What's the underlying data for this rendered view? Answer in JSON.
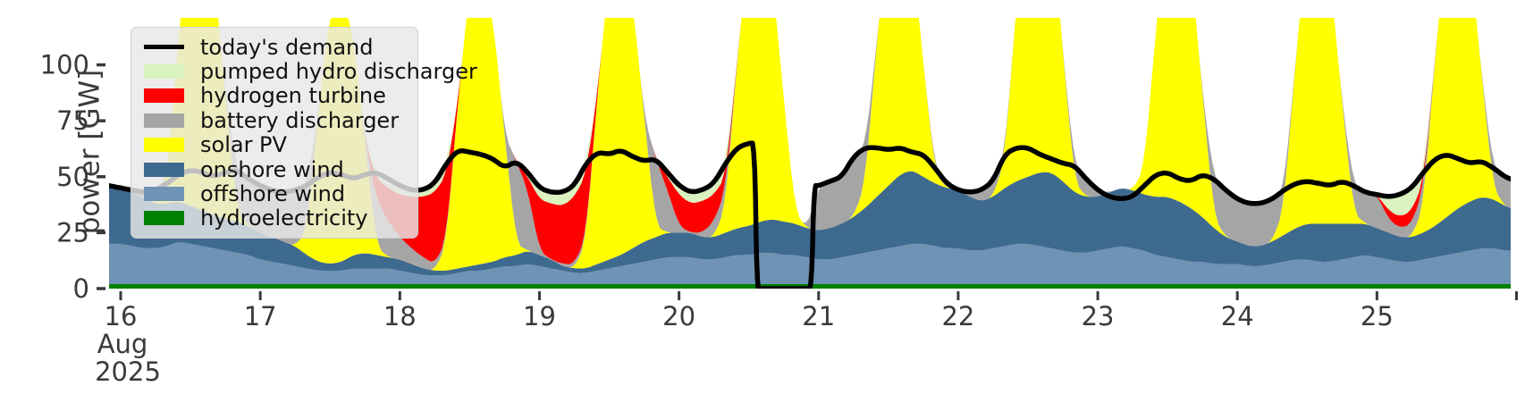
{
  "figure": {
    "ylabel": "power [GW]",
    "x_offset_label": {
      "line1": "Aug",
      "line2": "2025"
    },
    "text_color": "#3a3a3a",
    "background": "#ffffff"
  },
  "chart_data": {
    "type": "area",
    "title": "",
    "xlabel": "",
    "ylabel": "power [GW]",
    "x_unit": "hours since 2025-08-16 00:00",
    "xlim_hours": [
      -2,
      239
    ],
    "ylim": [
      0,
      121
    ],
    "grid": false,
    "x_ticks": {
      "hours": [
        0,
        24,
        48,
        72,
        96,
        120,
        144,
        168,
        192,
        216,
        240
      ],
      "labels": [
        "16",
        "17",
        "18",
        "19",
        "20",
        "21",
        "22",
        "23",
        "24",
        "25",
        ""
      ]
    },
    "y_ticks": {
      "values": [
        0,
        25,
        50,
        75,
        100
      ],
      "labels": [
        "0",
        "25",
        "50",
        "75",
        "100"
      ]
    },
    "legend": {
      "position": "upper left",
      "entries": [
        {
          "label": "today's demand",
          "color": "#000000",
          "swatch": "line"
        },
        {
          "label": "pumped hydro discharger",
          "color": "#d9f2c0",
          "swatch": "patch"
        },
        {
          "label": "hydrogen turbine",
          "color": "#ff0000",
          "swatch": "patch"
        },
        {
          "label": "battery discharger",
          "color": "#a5a5a5",
          "swatch": "patch"
        },
        {
          "label": "solar PV",
          "color": "#ffff00",
          "swatch": "patch"
        },
        {
          "label": "onshore wind",
          "color": "#3f6a8f",
          "swatch": "patch"
        },
        {
          "label": "offshore wind",
          "color": "#6e93b4",
          "swatch": "patch"
        },
        {
          "label": "hydroelectricity",
          "color": "#008000",
          "swatch": "patch"
        }
      ]
    },
    "stack_grid": {
      "pre_hour": -2,
      "day_start_hours": [
        0,
        24,
        48,
        72,
        96,
        120,
        144,
        168,
        192,
        216
      ],
      "hours_in_day": [
        0,
        2,
        4,
        6,
        8,
        10,
        12,
        14,
        16,
        18,
        20,
        22
      ],
      "post_hour": 239
    },
    "stack_series": [
      {
        "name": "hydroelectricity",
        "color": "#008000",
        "pre": 2,
        "post": 2,
        "constant": 2
      },
      {
        "name": "offshore wind",
        "color": "#6e93b4",
        "pre": 18,
        "post": 15,
        "days": [
          [
            18,
            17,
            16,
            16,
            17,
            19,
            18,
            17,
            16,
            15,
            14,
            13
          ],
          [
            11,
            10,
            9,
            8,
            7,
            6,
            6,
            6,
            7,
            7,
            7,
            7
          ],
          [
            6,
            5,
            4,
            4,
            4,
            5,
            6,
            6,
            7,
            8,
            8,
            9
          ],
          [
            8,
            7,
            6,
            5,
            5,
            6,
            7,
            8,
            9,
            10,
            11,
            12
          ],
          [
            12,
            12,
            11,
            11,
            12,
            13,
            13,
            14,
            14,
            13,
            13,
            12
          ],
          [
            11,
            11,
            12,
            13,
            14,
            15,
            16,
            17,
            18,
            18,
            17,
            16
          ],
          [
            16,
            15,
            15,
            16,
            17,
            18,
            18,
            17,
            16,
            15,
            14,
            14
          ],
          [
            15,
            16,
            17,
            16,
            15,
            13,
            12,
            11,
            10,
            10,
            9,
            9
          ],
          [
            9,
            8,
            8,
            9,
            10,
            11,
            11,
            10,
            10,
            11,
            12,
            13
          ],
          [
            12,
            11,
            10,
            10,
            11,
            12,
            13,
            14,
            15,
            16,
            16,
            15
          ]
        ]
      },
      {
        "name": "onshore wind",
        "color": "#3f6a8f",
        "pre": 25,
        "post": 19,
        "days": [
          [
            25,
            24,
            22,
            20,
            19,
            18,
            17,
            16,
            15,
            14,
            14,
            13
          ],
          [
            12,
            11,
            10,
            9,
            6,
            4,
            3,
            4,
            6,
            7,
            6,
            5
          ],
          [
            5,
            4,
            3,
            2,
            2,
            2,
            2,
            3,
            3,
            4,
            5,
            6
          ],
          [
            5,
            4,
            2,
            2,
            2,
            3,
            4,
            5,
            7,
            9,
            10,
            11
          ],
          [
            11,
            11,
            10,
            10,
            11,
            12,
            13,
            14,
            15,
            15,
            14,
            13
          ],
          [
            13,
            14,
            15,
            17,
            20,
            24,
            28,
            32,
            33,
            30,
            28,
            27
          ],
          [
            26,
            24,
            22,
            23,
            26,
            28,
            30,
            33,
            34,
            31,
            27,
            25
          ],
          [
            24,
            25,
            26,
            26,
            25,
            26,
            27,
            26,
            24,
            20,
            16,
            12
          ],
          [
            10,
            9,
            9,
            10,
            12,
            14,
            16,
            17,
            17,
            16,
            15,
            14
          ],
          [
            13,
            12,
            11,
            11,
            12,
            14,
            17,
            20,
            22,
            23,
            22,
            20
          ]
        ]
      },
      {
        "name": "solar PV",
        "color": "#ffff00",
        "pre": 0,
        "post": 0,
        "days": [
          [
            0,
            0,
            0,
            0,
            12,
            75,
            125,
            130,
            110,
            55,
            5,
            0
          ],
          [
            0,
            0,
            0,
            0,
            11,
            68,
            113,
            117,
            99,
            50,
            4,
            0
          ],
          [
            0,
            0,
            0,
            0,
            12,
            75,
            125,
            130,
            110,
            55,
            5,
            0
          ],
          [
            0,
            0,
            0,
            0,
            12,
            77,
            128,
            133,
            112,
            56,
            5,
            0
          ],
          [
            0,
            0,
            0,
            0,
            12,
            75,
            125,
            130,
            110,
            55,
            5,
            0
          ],
          [
            0,
            0,
            0,
            0,
            11,
            69,
            115,
            120,
            101,
            51,
            5,
            0
          ],
          [
            0,
            0,
            0,
            0,
            13,
            79,
            131,
            137,
            116,
            58,
            5,
            0
          ],
          [
            0,
            0,
            0,
            0,
            12,
            75,
            125,
            130,
            110,
            55,
            5,
            0
          ],
          [
            0,
            0,
            0,
            0,
            12,
            75,
            125,
            130,
            110,
            55,
            5,
            0
          ],
          [
            0,
            0,
            0,
            0,
            12,
            75,
            125,
            130,
            110,
            55,
            5,
            0
          ]
        ]
      },
      {
        "name": "battery discharger",
        "color": "#a5a5a5",
        "pre": 1,
        "post": 13,
        "days": [
          [
            0,
            1,
            3,
            6,
            0,
            0,
            0,
            0,
            0,
            0,
            18,
            21
          ],
          [
            21,
            21,
            22,
            25,
            20,
            0,
            0,
            0,
            0,
            0,
            21,
            16
          ],
          [
            10,
            7,
            5,
            3,
            2,
            0,
            0,
            0,
            0,
            0,
            37,
            27
          ],
          [
            2,
            0,
            1,
            2,
            2,
            0,
            0,
            0,
            0,
            0,
            30,
            19
          ],
          [
            3,
            0,
            2,
            7,
            7,
            0,
            0,
            0,
            0,
            0,
            0,
            0
          ],
          [
            20,
            21,
            21,
            27,
            16,
            0,
            0,
            0,
            0,
            0,
            2,
            2
          ],
          [
            0,
            2,
            5,
            7,
            2,
            0,
            0,
            0,
            0,
            0,
            7,
            8
          ],
          [
            3,
            0,
            0,
            0,
            0,
            0,
            0,
            0,
            0,
            0,
            17,
            21
          ],
          [
            19,
            19,
            19,
            19,
            8,
            0,
            0,
            0,
            0,
            0,
            12,
            14
          ],
          [
            15,
            6,
            4,
            6,
            8,
            0,
            0,
            0,
            0,
            0,
            9,
            13
          ]
        ]
      },
      {
        "name": "hydrogen turbine",
        "color": "#ff0000",
        "pre": 0,
        "post": 0,
        "days": [
          [
            0,
            0,
            0,
            0,
            0,
            0,
            0,
            0,
            0,
            0,
            0,
            0
          ],
          [
            0,
            0,
            0,
            0,
            0,
            0,
            0,
            0,
            0,
            0,
            9,
            15
          ],
          [
            19,
            23,
            27,
            32,
            29,
            0,
            0,
            0,
            0,
            0,
            0,
            6
          ],
          [
            23,
            25,
            26,
            30,
            28,
            0,
            0,
            0,
            0,
            0,
            0,
            6
          ],
          [
            14,
            13,
            14,
            12,
            6,
            0,
            0,
            0,
            0,
            0,
            0,
            0
          ],
          [
            0,
            0,
            0,
            0,
            0,
            0,
            0,
            0,
            0,
            0,
            0,
            0
          ],
          [
            0,
            0,
            0,
            0,
            0,
            0,
            0,
            0,
            0,
            0,
            0,
            0
          ],
          [
            0,
            0,
            0,
            0,
            0,
            0,
            0,
            0,
            0,
            0,
            0,
            0
          ],
          [
            0,
            0,
            0,
            0,
            0,
            0,
            0,
            0,
            0,
            0,
            0,
            0
          ],
          [
            0,
            4,
            5,
            6,
            3,
            0,
            0,
            0,
            0,
            0,
            0,
            0
          ]
        ]
      },
      {
        "name": "pumped hydro discharger",
        "color": "#d9f2c0",
        "pre": 0,
        "post": 0,
        "days": [
          [
            0,
            0,
            0,
            0,
            0,
            0,
            0,
            0,
            0,
            0,
            0,
            0
          ],
          [
            0,
            0,
            0,
            0,
            0,
            0,
            0,
            0,
            0,
            0,
            3,
            4
          ],
          [
            4,
            3,
            3,
            4,
            5,
            0,
            0,
            0,
            0,
            0,
            0,
            2
          ],
          [
            5,
            5,
            6,
            5,
            5,
            0,
            0,
            0,
            0,
            0,
            0,
            2
          ],
          [
            4,
            5,
            5,
            5,
            6,
            0,
            0,
            0,
            0,
            0,
            0,
            0
          ],
          [
            0,
            0,
            0,
            0,
            0,
            0,
            0,
            0,
            0,
            0,
            0,
            0
          ],
          [
            0,
            0,
            0,
            0,
            0,
            0,
            0,
            0,
            0,
            0,
            0,
            0
          ],
          [
            0,
            0,
            0,
            0,
            0,
            0,
            0,
            0,
            0,
            0,
            0,
            0
          ],
          [
            0,
            0,
            0,
            0,
            0,
            0,
            0,
            0,
            0,
            0,
            0,
            0
          ],
          [
            0,
            6,
            9,
            10,
            4,
            0,
            0,
            0,
            0,
            0,
            0,
            0
          ]
        ]
      }
    ],
    "demand_line": {
      "name": "today's demand",
      "color": "#000000",
      "width": 5.5,
      "x_hours": [
        -2,
        0,
        2,
        4,
        6,
        8,
        10,
        12,
        14,
        16,
        18,
        20,
        22,
        24,
        26,
        28,
        30,
        32,
        34,
        36,
        38,
        40,
        42,
        44,
        46,
        48,
        50,
        52,
        54,
        56,
        58,
        60,
        62,
        64,
        66,
        68,
        70,
        72,
        74,
        76,
        78,
        80,
        82,
        84,
        86,
        88,
        90,
        92,
        94,
        96,
        98,
        100,
        102,
        104,
        106,
        108,
        109,
        109.4,
        110,
        112,
        114,
        116,
        118,
        118.8,
        119.2,
        120,
        122,
        124,
        126,
        128,
        130,
        132,
        134,
        136,
        138,
        140,
        142,
        144,
        146,
        148,
        150,
        152,
        154,
        156,
        158,
        160,
        162,
        164,
        166,
        168,
        170,
        172,
        174,
        176,
        178,
        180,
        182,
        184,
        186,
        188,
        190,
        192,
        194,
        196,
        198,
        200,
        202,
        204,
        206,
        208,
        210,
        212,
        214,
        216,
        218,
        220,
        222,
        224,
        226,
        228,
        230,
        232,
        234,
        236,
        238,
        239
      ],
      "values": [
        46,
        45,
        44,
        43,
        44,
        47,
        51,
        53,
        52,
        50,
        52,
        53,
        49,
        46,
        44,
        43,
        44,
        46,
        50,
        52,
        51,
        49,
        51,
        52,
        49,
        46,
        44,
        44,
        47,
        56,
        62,
        61,
        60,
        58,
        54,
        57,
        52,
        45,
        43,
        43,
        46,
        56,
        61,
        60,
        62,
        59,
        57,
        58,
        52,
        46,
        43,
        44,
        47,
        56,
        63,
        65,
        65,
        0,
        0,
        0,
        0,
        0,
        0,
        0,
        46,
        46,
        48,
        50,
        59,
        63,
        63,
        62,
        63,
        61,
        60,
        54,
        47,
        44,
        43,
        44,
        48,
        60,
        63,
        63,
        60,
        58,
        56,
        55,
        49,
        44,
        41,
        40,
        41,
        46,
        51,
        52,
        49,
        48,
        51,
        49,
        44,
        40,
        38,
        38,
        40,
        44,
        47,
        48,
        47,
        46,
        48,
        46,
        43,
        42,
        41,
        42,
        45,
        52,
        58,
        60,
        58,
        56,
        57,
        54,
        50,
        49
      ]
    }
  }
}
